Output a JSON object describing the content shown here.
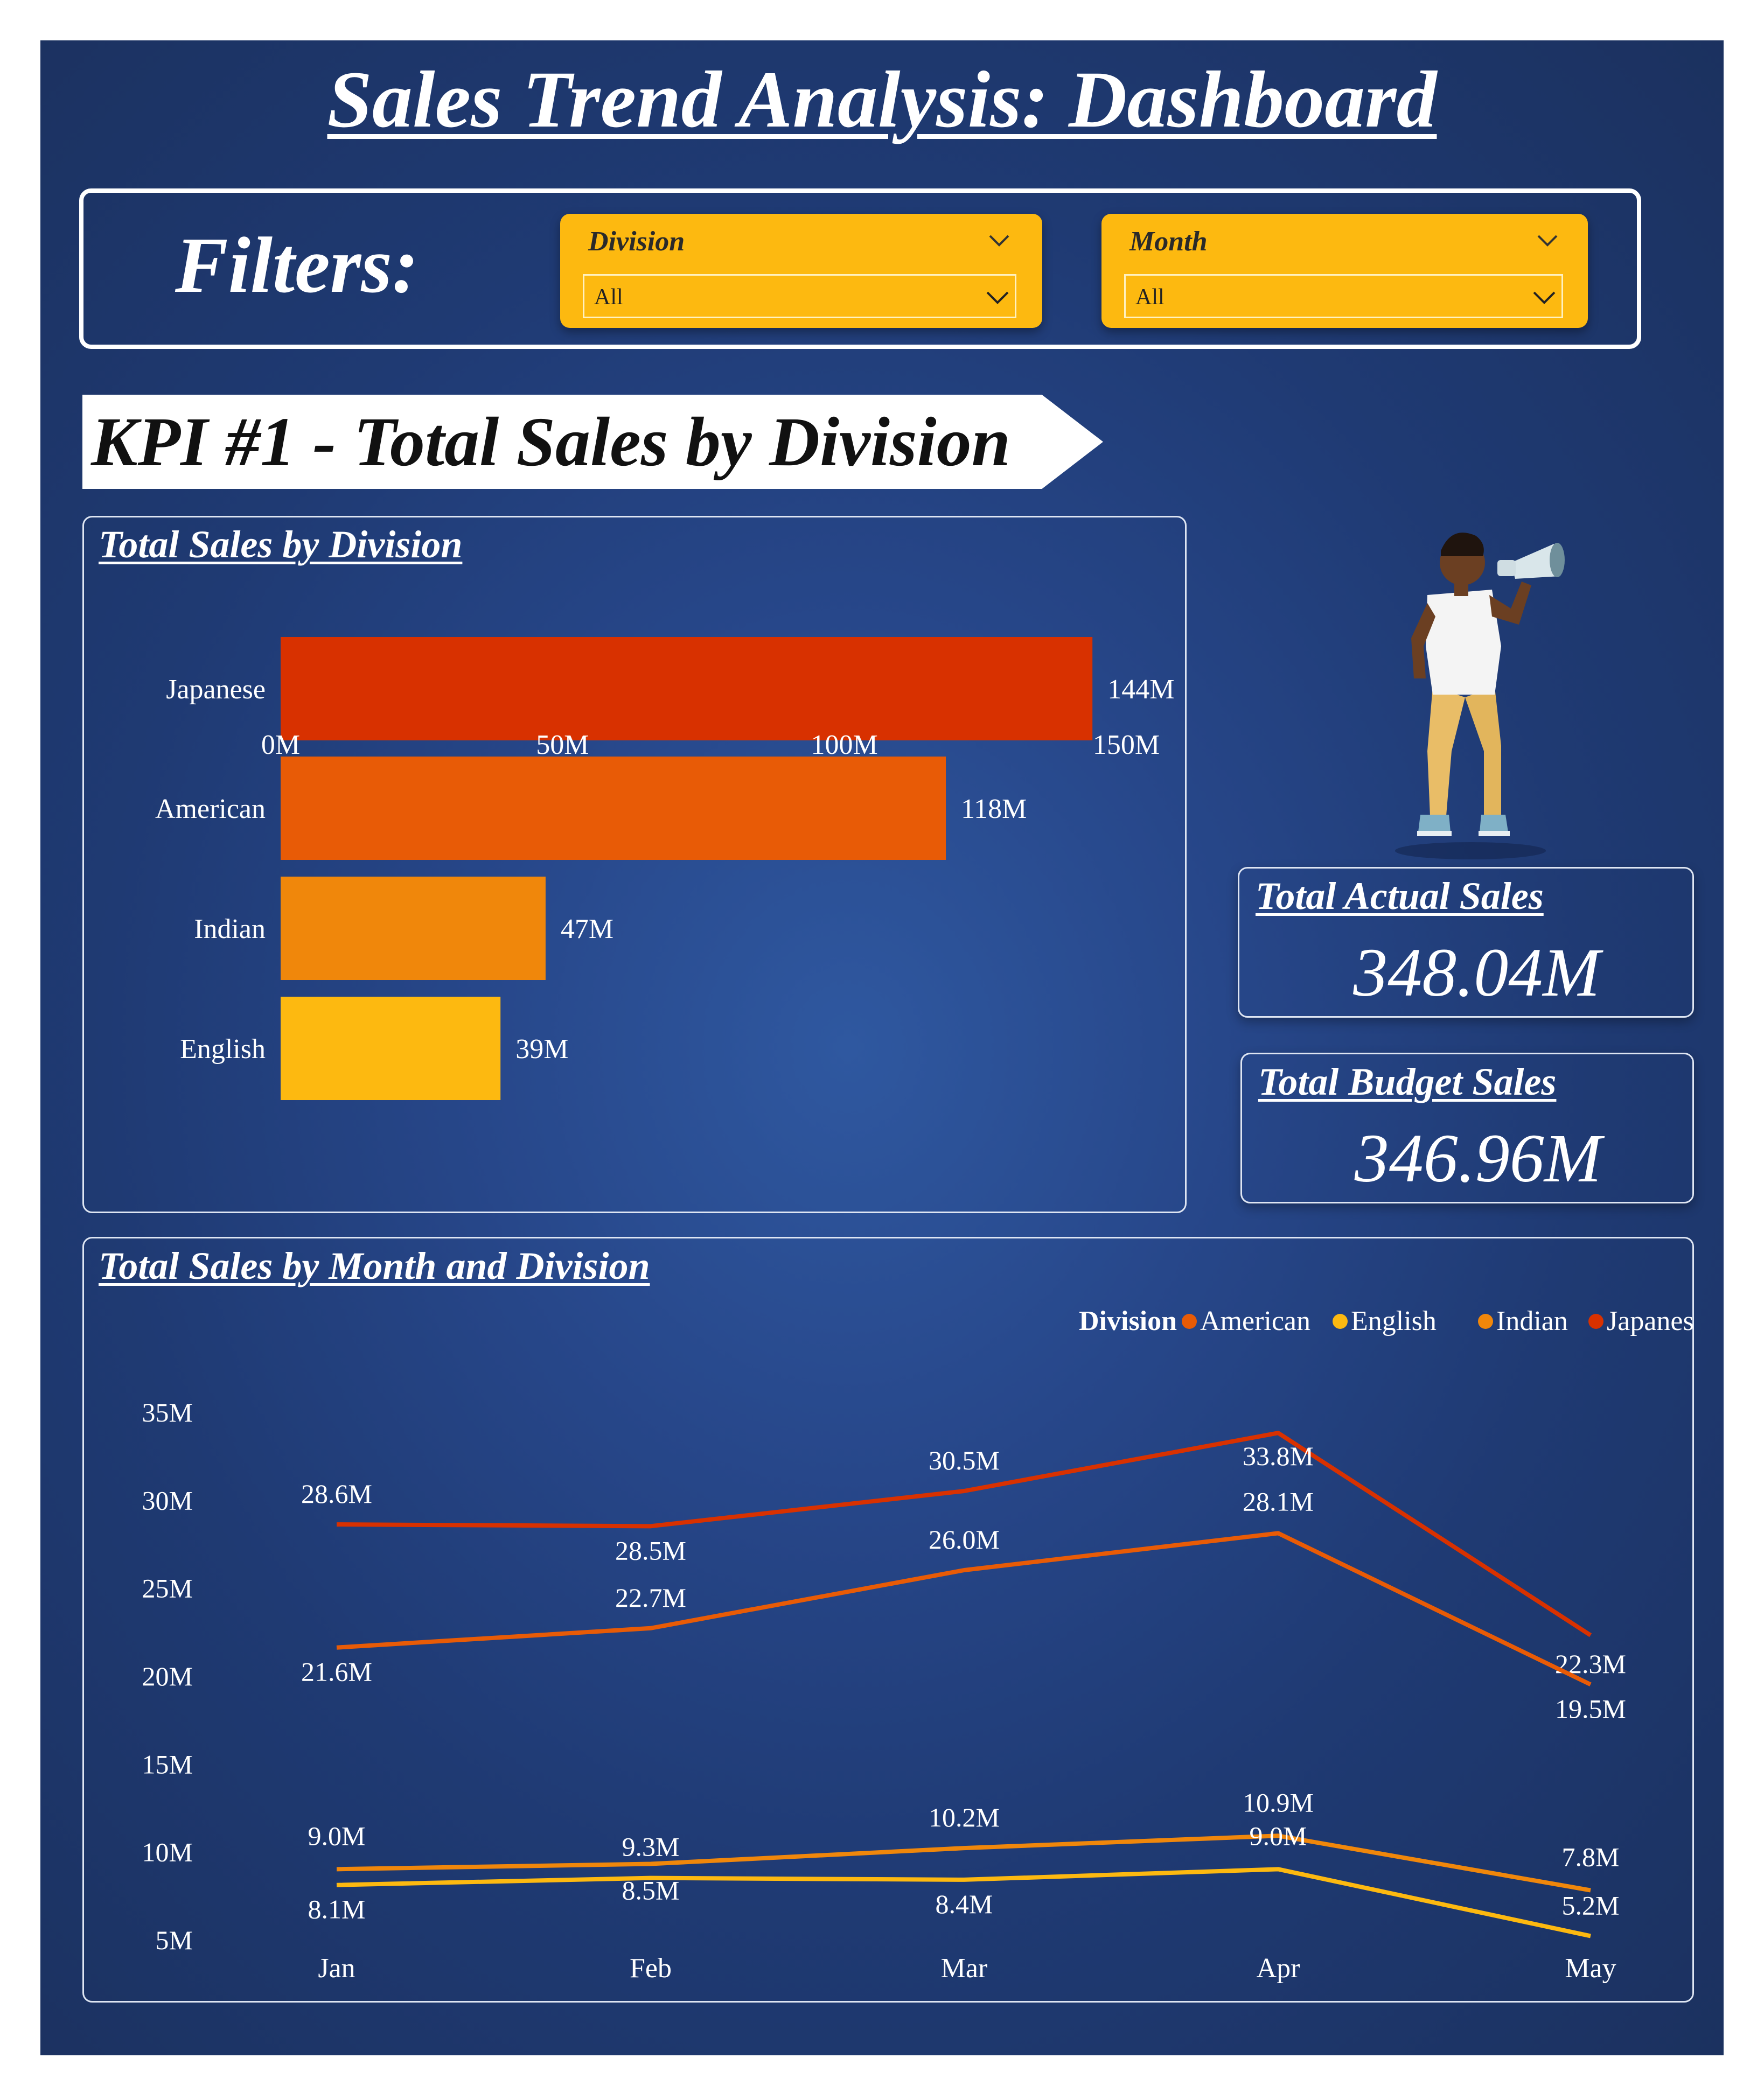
{
  "title": "Sales Trend Analysis: Dashboard",
  "filters": {
    "label": "Filters:",
    "division": {
      "title": "Division",
      "value": "All"
    },
    "month": {
      "title": "Month",
      "value": "All"
    }
  },
  "kpi_banner": "KPI #1 - Total Sales by Division",
  "colors": {
    "background": "#24437f",
    "slicer": "#fdb910",
    "japanese": "#d83100",
    "american": "#e85b06",
    "indian": "#f0870b",
    "english": "#fdb910"
  },
  "cards": {
    "actual": {
      "title": "Total Actual Sales",
      "value": "348.04M"
    },
    "budget": {
      "title": "Total Budget Sales",
      "value": "346.96M"
    }
  },
  "illustration": "person-with-megaphone",
  "chart_data": [
    {
      "type": "bar",
      "orientation": "horizontal",
      "title": "Total Sales by Division",
      "categories": [
        "Japanese",
        "American",
        "Indian",
        "English"
      ],
      "values": [
        144,
        118,
        47,
        39
      ],
      "data_labels": [
        "144M",
        "118M",
        "47M",
        "39M"
      ],
      "xticks": [
        "0M",
        "50M",
        "100M",
        "150M"
      ],
      "xlim": [
        0,
        150
      ],
      "unit": "M"
    },
    {
      "type": "line",
      "title": "Total Sales by Month and Division",
      "legend_title": "Division",
      "legend": [
        "American",
        "English",
        "Indian",
        "Japanese"
      ],
      "legend_position": "top-right",
      "categories": [
        "Jan",
        "Feb",
        "Mar",
        "Apr",
        "May"
      ],
      "yticks": [
        "35M",
        "30M",
        "25M",
        "20M",
        "15M",
        "10M",
        "5M"
      ],
      "ylim": [
        5,
        35
      ],
      "series": [
        {
          "name": "Japanese",
          "values": [
            28.6,
            28.5,
            30.5,
            33.8,
            22.3
          ],
          "labels": [
            "28.6M",
            "28.5M",
            "30.5M",
            "33.8M",
            "22.3M"
          ]
        },
        {
          "name": "American",
          "values": [
            21.6,
            22.7,
            26.0,
            28.1,
            19.5
          ],
          "labels": [
            "21.6M",
            "22.7M",
            "26.0M",
            "28.1M",
            "19.5M"
          ]
        },
        {
          "name": "Indian",
          "values": [
            9.0,
            9.3,
            10.2,
            10.9,
            7.8
          ],
          "labels": [
            "9.0M",
            "9.3M",
            "10.2M",
            "10.9M",
            "7.8M"
          ]
        },
        {
          "name": "English",
          "values": [
            8.1,
            8.5,
            8.4,
            9.0,
            5.2
          ],
          "labels": [
            "8.1M",
            "8.5M",
            "8.4M",
            "9.0M",
            "5.2M"
          ]
        }
      ]
    }
  ]
}
